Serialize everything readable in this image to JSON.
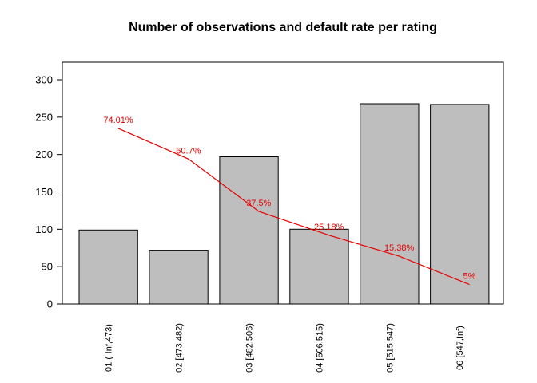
{
  "title": "Number of observations and default rate per rating",
  "colors": {
    "background": "#ffffff",
    "bar_fill": "#bebebe",
    "bar_border": "#000000",
    "axis": "#000000",
    "line": "#e60000",
    "rate_label": "#e60000"
  },
  "chart_data": {
    "type": "bar",
    "title": "Number of observations and default rate per rating",
    "xlabel": "",
    "ylabel": "",
    "grid": false,
    "legend": false,
    "categories": [
      "01 (-Inf,473)",
      "02 [473,482)",
      "03 [482,506)",
      "04 [506,515)",
      "05 [515,547)",
      "06 [547,Inf)"
    ],
    "y_axis": {
      "ticks": [
        0,
        50,
        100,
        150,
        200,
        250,
        300
      ],
      "lim": [
        0,
        323
      ]
    },
    "series": [
      {
        "name": "Number of observations",
        "type": "bar",
        "values": [
          99,
          72,
          197,
          100,
          268,
          267
        ]
      },
      {
        "name": "Default rate per rating",
        "type": "line",
        "point_labels": [
          "74.01%",
          "60.7%",
          "37.5%",
          "25.18%",
          "15.38%",
          "5%"
        ],
        "values_pct": [
          74.01,
          60.7,
          37.5,
          25.18,
          15.38,
          5
        ],
        "plotted_axis_values": [
          235,
          194,
          124,
          92,
          64,
          26
        ]
      }
    ]
  }
}
